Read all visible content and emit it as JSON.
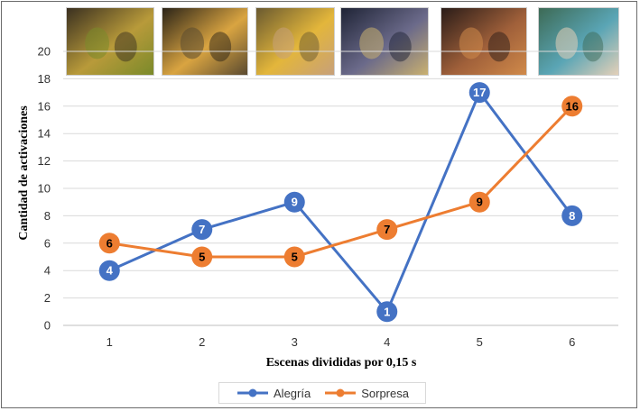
{
  "chart_data": {
    "type": "line",
    "xlabel": "Escenas divididas por 0,15 s",
    "ylabel": "Cantidad de activaciones",
    "categories": [
      "1",
      "2",
      "3",
      "4",
      "5",
      "6"
    ],
    "ylim": [
      0,
      20
    ],
    "yticks": [
      "0",
      "2",
      "4",
      "6",
      "8",
      "10",
      "12",
      "14",
      "16",
      "18",
      "20"
    ],
    "grid": true,
    "legend_position": "bottom",
    "series": [
      {
        "name": "Alegría",
        "color": "#4472c4",
        "values": [
          4,
          7,
          9,
          1,
          17,
          8
        ],
        "labels": [
          "4",
          "7",
          "9",
          "1",
          "17",
          "8"
        ]
      },
      {
        "name": "Sorpresa",
        "color": "#ed7d31",
        "values": [
          6,
          5,
          5,
          7,
          9,
          16
        ],
        "labels": [
          "6",
          "5",
          "5",
          "7",
          "9",
          "16"
        ]
      }
    ]
  },
  "thumbnails": [
    {
      "name": "scene-1-fruit-market-image",
      "colors": [
        "#3a3020",
        "#b89a3a",
        "#7a8a2a"
      ]
    },
    {
      "name": "scene-2-sunset-couple-image",
      "colors": [
        "#2b2418",
        "#d9a441",
        "#5a4a30"
      ]
    },
    {
      "name": "scene-3-woman-eating-image",
      "colors": [
        "#6a5a30",
        "#e3b63b",
        "#c7a07a"
      ]
    },
    {
      "name": "scene-4-night-gathering-image",
      "colors": [
        "#1f2436",
        "#6b6a8a",
        "#c9b070"
      ]
    },
    {
      "name": "scene-5-night-table-image",
      "colors": [
        "#2a1c18",
        "#a0603a",
        "#d08a4a"
      ]
    },
    {
      "name": "scene-6-three-people-image",
      "colors": [
        "#3d6a55",
        "#5aa5b5",
        "#e4d0b8"
      ]
    }
  ]
}
